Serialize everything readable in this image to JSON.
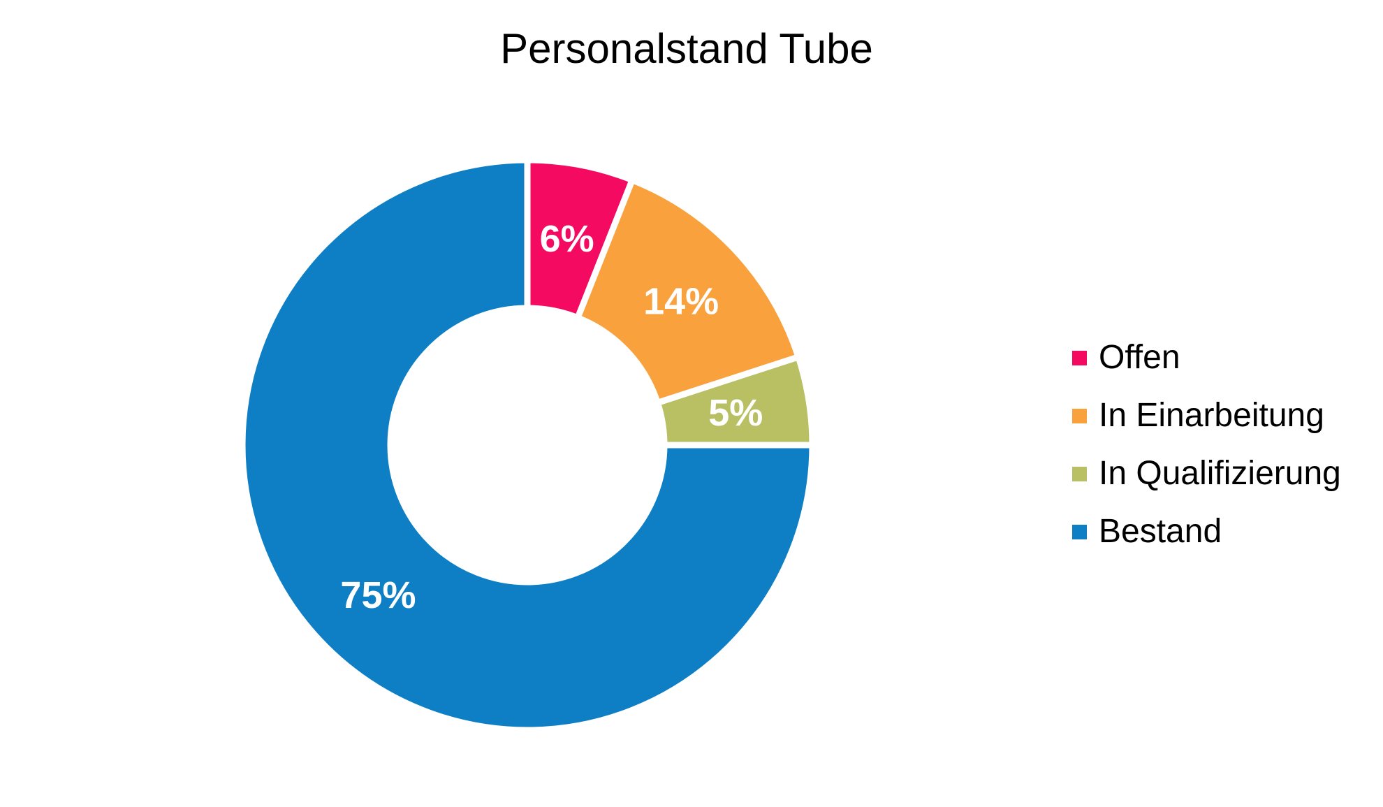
{
  "chart_data": {
    "type": "pie",
    "subtype": "donut",
    "title": "Personalstand Tube",
    "categories": [
      "Offen",
      "In Einarbeitung",
      "In Qualifizierung",
      "Bestand"
    ],
    "values": [
      6,
      14,
      5,
      75
    ],
    "labels": [
      "6%",
      "14%",
      "5%",
      "75%"
    ],
    "unit": "%",
    "colors": [
      "#F50A62",
      "#F9A13D",
      "#B9BF63",
      "#0E7FC4"
    ],
    "slice_border_color": "#FFFFFF",
    "label_color": "#FFFFFF",
    "title_color": "#000000",
    "background_color": "#FFFFFF",
    "start_angle_deg": 0,
    "direction": "clockwise",
    "donut_hole_ratio": 0.49,
    "legend_position": "right",
    "grid": false
  }
}
